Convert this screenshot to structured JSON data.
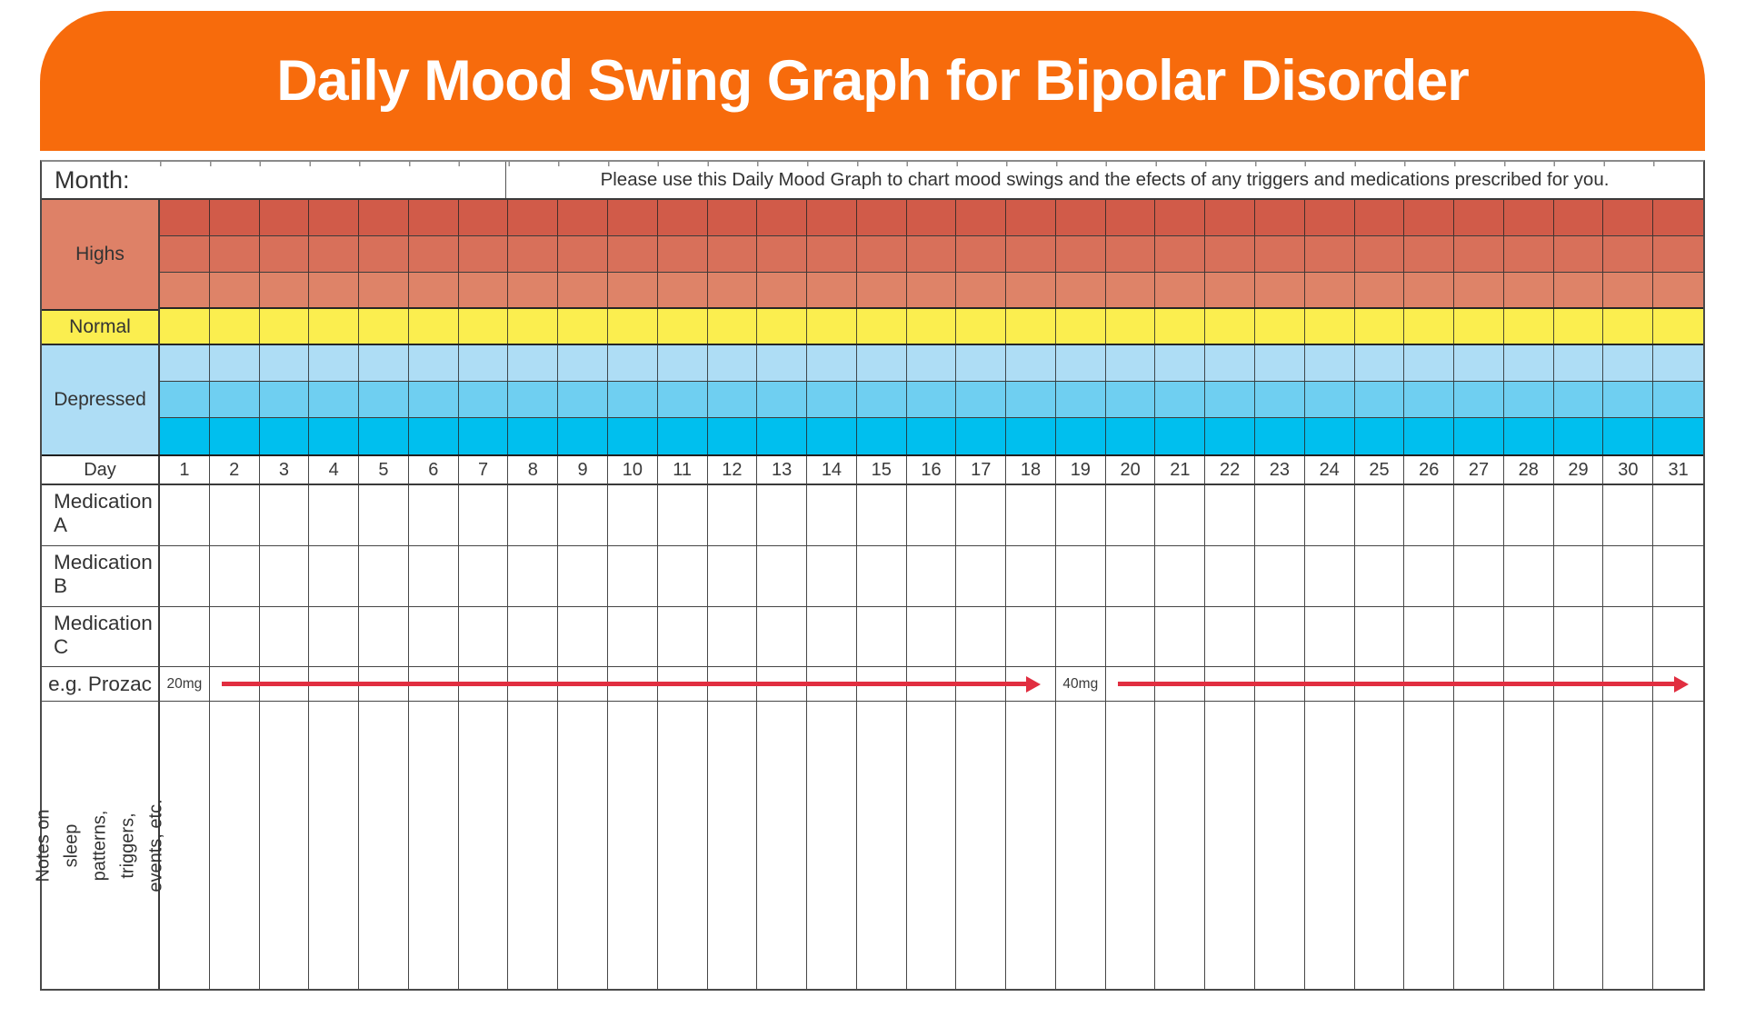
{
  "banner": {
    "title": "Daily Mood Swing Graph for Bipolar Disorder",
    "background": "#F76B0C",
    "text_color": "#FFFFFF"
  },
  "header": {
    "month_label": "Month:",
    "instruction": "Please use this Daily Mood Graph to chart mood swings and the efects of any triggers and medications prescribed for you."
  },
  "mood_chart": {
    "columns": 31,
    "sections": [
      {
        "label": "Highs",
        "label_bg": "#DE8167",
        "rows": [
          "#D15B49",
          "#D8705A",
          "#DE8368"
        ]
      },
      {
        "label": "Normal",
        "label_bg": "#FBEE4F",
        "rows": [
          "#FBEE4F"
        ]
      },
      {
        "label": "Depressed",
        "label_bg": "#AEDDF5",
        "rows": [
          "#AEDDF5",
          "#6FCFF1",
          "#00BFEE"
        ]
      }
    ]
  },
  "day_row": {
    "label": "Day",
    "days": [
      1,
      2,
      3,
      4,
      5,
      6,
      7,
      8,
      9,
      10,
      11,
      12,
      13,
      14,
      15,
      16,
      17,
      18,
      19,
      20,
      21,
      22,
      23,
      24,
      25,
      26,
      27,
      28,
      29,
      30,
      31
    ]
  },
  "medications": [
    {
      "label": "Medication A"
    },
    {
      "label": "Medication B"
    },
    {
      "label": "Medication C"
    }
  ],
  "example_row": {
    "label": "e.g. Prozac",
    "arrow_color": "#E12E40",
    "doses": [
      {
        "text": "20mg",
        "day": 1
      },
      {
        "text": "40mg",
        "day": 19
      }
    ],
    "arrows": [
      {
        "from_day": 2,
        "to_day": 18
      },
      {
        "from_day": 20,
        "to_day": 31
      }
    ]
  },
  "notes_row": {
    "label": "Notes on sleep patterns, triggers,\nevents, etc."
  }
}
